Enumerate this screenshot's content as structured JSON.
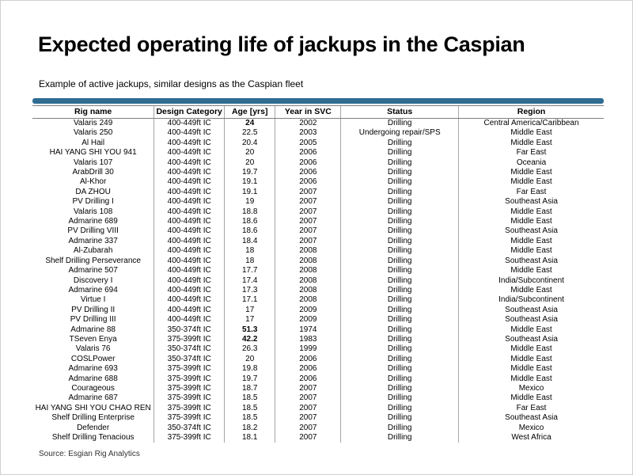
{
  "slide": {
    "title": "Expected operating life of jackups in the Caspian",
    "subtitle": "Example of active jackups, similar designs as the Caspian fleet",
    "source": "Source: Esgian Rig Analytics"
  },
  "colors": {
    "accent_bar": "#2F6D92",
    "header_rule": "#7f7f7f",
    "column_divider": "#a6a6a6"
  },
  "chart_data": {
    "type": "table",
    "columns": [
      "Rig name",
      "Design Category",
      "Age [yrs]",
      "Year in SVC",
      "Status",
      "Region"
    ],
    "rows": [
      [
        "Valaris 249",
        "400-449ft IC",
        "24",
        "2002",
        "Drilling",
        "Central America/Caribbean"
      ],
      [
        "Valaris 250",
        "400-449ft IC",
        "22.5",
        "2003",
        "Undergoing repair/SPS",
        "Middle East"
      ],
      [
        "Al Hail",
        "400-449ft IC",
        "20.4",
        "2005",
        "Drilling",
        "Middle East"
      ],
      [
        "HAI YANG SHI YOU 941",
        "400-449ft IC",
        "20",
        "2006",
        "Drilling",
        "Far East"
      ],
      [
        "Valaris 107",
        "400-449ft IC",
        "20",
        "2006",
        "Drilling",
        "Oceania"
      ],
      [
        "ArabDrill 30",
        "400-449ft IC",
        "19.7",
        "2006",
        "Drilling",
        "Middle East"
      ],
      [
        "Al-Khor",
        "400-449ft IC",
        "19.1",
        "2006",
        "Drilling",
        "Middle East"
      ],
      [
        "DA ZHOU",
        "400-449ft IC",
        "19.1",
        "2007",
        "Drilling",
        "Far East"
      ],
      [
        "PV Drilling I",
        "400-449ft IC",
        "19",
        "2007",
        "Drilling",
        "Southeast Asia"
      ],
      [
        "Valaris 108",
        "400-449ft IC",
        "18.8",
        "2007",
        "Drilling",
        "Middle East"
      ],
      [
        "Admarine 689",
        "400-449ft IC",
        "18.6",
        "2007",
        "Drilling",
        "Middle East"
      ],
      [
        "PV Drilling VIII",
        "400-449ft IC",
        "18.6",
        "2007",
        "Drilling",
        "Southeast Asia"
      ],
      [
        "Admarine 337",
        "400-449ft IC",
        "18.4",
        "2007",
        "Drilling",
        "Middle East"
      ],
      [
        "Al-Zubarah",
        "400-449ft IC",
        "18",
        "2008",
        "Drilling",
        "Middle East"
      ],
      [
        "Shelf Drilling Perseverance",
        "400-449ft IC",
        "18",
        "2008",
        "Drilling",
        "Southeast Asia"
      ],
      [
        "Admarine 507",
        "400-449ft IC",
        "17.7",
        "2008",
        "Drilling",
        "Middle East"
      ],
      [
        "Discovery I",
        "400-449ft IC",
        "17.4",
        "2008",
        "Drilling",
        "India/Subcontinent"
      ],
      [
        "Admarine 694",
        "400-449ft IC",
        "17.3",
        "2008",
        "Drilling",
        "Middle East"
      ],
      [
        "Virtue I",
        "400-449ft IC",
        "17.1",
        "2008",
        "Drilling",
        "India/Subcontinent"
      ],
      [
        "PV Drilling II",
        "400-449ft IC",
        "17",
        "2009",
        "Drilling",
        "Southeast Asia"
      ],
      [
        "PV Drilling III",
        "400-449ft IC",
        "17",
        "2009",
        "Drilling",
        "Southeast Asia"
      ],
      [
        "Admarine 88",
        "350-374ft IC",
        "51.3",
        "1974",
        "Drilling",
        "Middle East"
      ],
      [
        "TSeven Enya",
        "375-399ft IC",
        "42.2",
        "1983",
        "Drilling",
        "Southeast Asia"
      ],
      [
        "Valaris 76",
        "350-374ft IC",
        "26.3",
        "1999",
        "Drilling",
        "Middle East"
      ],
      [
        "COSLPower",
        "350-374ft IC",
        "20",
        "2006",
        "Drilling",
        "Middle East"
      ],
      [
        "Admarine 693",
        "375-399ft IC",
        "19.8",
        "2006",
        "Drilling",
        "Middle East"
      ],
      [
        "Admarine 688",
        "375-399ft IC",
        "19.7",
        "2006",
        "Drilling",
        "Middle East"
      ],
      [
        "Courageous",
        "375-399ft IC",
        "18.7",
        "2007",
        "Drilling",
        "Mexico"
      ],
      [
        "Admarine 687",
        "375-399ft IC",
        "18.5",
        "2007",
        "Drilling",
        "Middle East"
      ],
      [
        "HAI YANG SHI YOU CHAO REN",
        "375-399ft IC",
        "18.5",
        "2007",
        "Drilling",
        "Far East"
      ],
      [
        "Shelf Drilling Enterprise",
        "375-399ft IC",
        "18.5",
        "2007",
        "Drilling",
        "Southeast Asia"
      ],
      [
        "Defender",
        "350-374ft IC",
        "18.2",
        "2007",
        "Drilling",
        "Mexico"
      ],
      [
        "Shelf Drilling Tenacious",
        "375-399ft IC",
        "18.1",
        "2007",
        "Drilling",
        "West Africa"
      ]
    ],
    "bold_age_row_indexes": [
      0,
      21,
      22
    ],
    "layout_hints": "age column index 2 carries bold emphasis on flagged rows"
  }
}
